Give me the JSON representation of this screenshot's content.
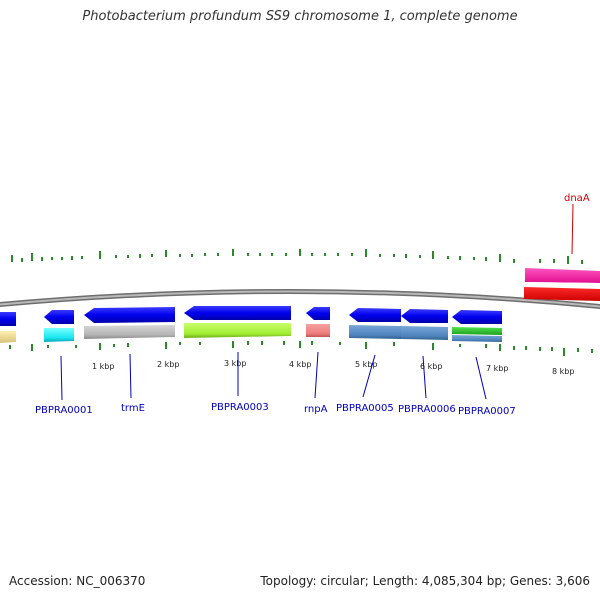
{
  "title": "Photobacterium profundum SS9 chromosome 1, complete genome",
  "footer": {
    "accession": "Accession: NC_006370",
    "summary": "Topology: circular; Length: 4,085,304 bp; Genes: 3,606"
  },
  "colors": {
    "backbone": "#8c8c8c",
    "tick": "#2a8a2a",
    "label_blue": "#0000bb",
    "label_red": "#cc0000"
  },
  "scale_labels": [
    "1 kbp",
    "2 kbp",
    "3 kbp",
    "4 kbp",
    "5 kbp",
    "6 kbp",
    "7 kbp",
    "8 kbp"
  ],
  "gene_labels": [
    {
      "text": "PBPRA0001",
      "color": "#0000bb"
    },
    {
      "text": "trmE",
      "color": "#0000bb"
    },
    {
      "text": "PBPRA0003",
      "color": "#0000bb"
    },
    {
      "text": "rnpA",
      "color": "#0000bb"
    },
    {
      "text": "PBPRA0005",
      "color": "#0000bb"
    },
    {
      "text": "PBPRA0006",
      "color": "#0000bb"
    },
    {
      "text": "PBPRA0007",
      "color": "#0000bb"
    },
    {
      "text": "dnaA",
      "color": "#cc0000"
    }
  ]
}
